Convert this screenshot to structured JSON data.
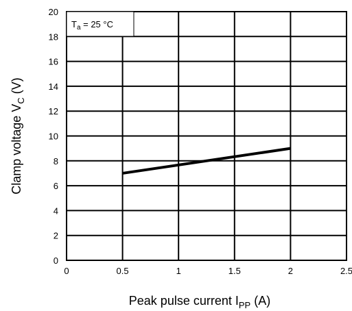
{
  "chart_data": {
    "type": "line",
    "xlabel": "Peak pulse current  I",
    "xlabel_sub": "PP",
    "xlabel_unit": "  (A)",
    "ylabel": "Clamp voltage   V",
    "ylabel_sub": "C",
    "ylabel_unit": "  (V)",
    "xlim": [
      0,
      2.5
    ],
    "ylim": [
      0,
      20
    ],
    "x_ticks": [
      0,
      0.5,
      1,
      1.5,
      2,
      2.5
    ],
    "x_tick_labels": [
      "0",
      "0.5",
      "1",
      "1.5",
      "2",
      "2.5"
    ],
    "y_ticks": [
      0,
      2,
      4,
      6,
      8,
      10,
      12,
      14,
      16,
      18,
      20
    ],
    "y_tick_labels": [
      "0",
      "2",
      "4",
      "6",
      "8",
      "10",
      "12",
      "14",
      "16",
      "18",
      "20"
    ],
    "grid": true,
    "annotation": {
      "main": "T",
      "sub": "a",
      "rest": " = 25 °C"
    },
    "series": [
      {
        "x": [
          0.5,
          2.0
        ],
        "y": [
          7.0,
          9.0
        ],
        "color": "#000000"
      }
    ]
  }
}
